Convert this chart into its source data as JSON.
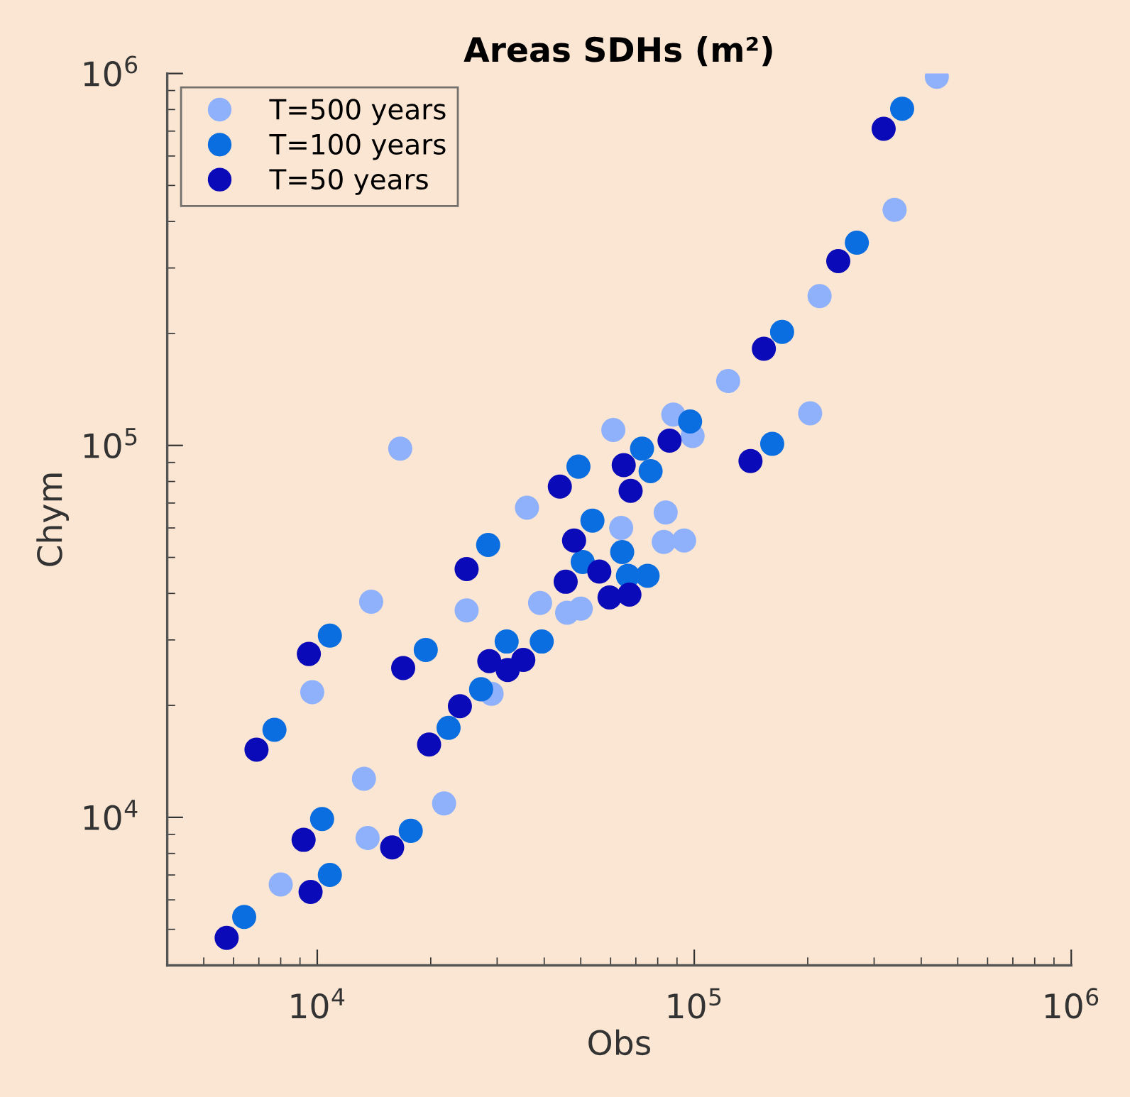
{
  "chart_data": {
    "type": "scatter",
    "title": "Areas SDHs (m²)",
    "xlabel": "Obs",
    "ylabel": "Chym",
    "xlim": [
      4000,
      1000000
    ],
    "ylim": [
      4000,
      1000000
    ],
    "xticks": [
      {
        "value": 10000,
        "label": "10$^{4}$"
      },
      {
        "value": 100000,
        "label": "10$^{5}$"
      },
      {
        "value": 1000000,
        "label": "10$^{6}$"
      }
    ],
    "yticks": [
      {
        "value": 10000,
        "label": "10$^{4}$"
      },
      {
        "value": 100000,
        "label": "10$^{5}$"
      },
      {
        "value": 1000000,
        "label": "10$^{6}$"
      }
    ],
    "log": "xy",
    "grid": false,
    "legend": "top left",
    "marker": "circle",
    "series": [
      {
        "name": "T=500 years",
        "color": "#8fb1fb",
        "x": [
          8000,
          13600,
          13300,
          21700,
          9700,
          13900,
          24900,
          16600,
          61000,
          36000,
          64000,
          84000,
          83000,
          94000,
          39000,
          46000,
          50000,
          29000,
          440000,
          340000,
          215000,
          123000,
          203000,
          88000,
          99000
        ],
        "values": [
          6600,
          8800,
          12700,
          10900,
          21700,
          38000,
          36000,
          98000,
          110000,
          68000,
          60000,
          66000,
          55000,
          55500,
          37700,
          35500,
          36400,
          21500,
          980000,
          430000,
          252000,
          149000,
          122000,
          121000,
          106000
        ]
      },
      {
        "name": "T=100 years",
        "color": "#0a6ee0",
        "x": [
          6400,
          10800,
          10300,
          17700,
          7700,
          10800,
          19400,
          22300,
          72700,
          49300,
          76600,
          53700,
          28400,
          64400,
          50600,
          66700,
          75200,
          31800,
          39400,
          27200,
          356000,
          270000,
          171000,
          161000,
          97500
        ],
        "values": [
          5400,
          7000,
          9900,
          9200,
          17200,
          30800,
          28200,
          17400,
          98000,
          87700,
          85300,
          62800,
          54000,
          51700,
          48600,
          44600,
          44600,
          29700,
          29700,
          22100,
          804000,
          351000,
          202000,
          101000,
          116000
        ]
      },
      {
        "name": "T=50 years",
        "color": "#0a0ab8",
        "x": [
          5750,
          9600,
          9200,
          15800,
          6900,
          9500,
          16900,
          19800,
          23900,
          24900,
          86000,
          65000,
          44000,
          67800,
          48000,
          56000,
          45600,
          59600,
          67300,
          28600,
          35200,
          32000,
          318000,
          241000,
          153000,
          141000
        ],
        "values": [
          4740,
          6300,
          8700,
          8300,
          15200,
          27500,
          25200,
          15700,
          19900,
          46500,
          103000,
          88500,
          77500,
          75500,
          55500,
          45800,
          43000,
          39000,
          39700,
          26300,
          26500,
          24900,
          710000,
          313000,
          182000,
          90800
        ]
      }
    ]
  }
}
